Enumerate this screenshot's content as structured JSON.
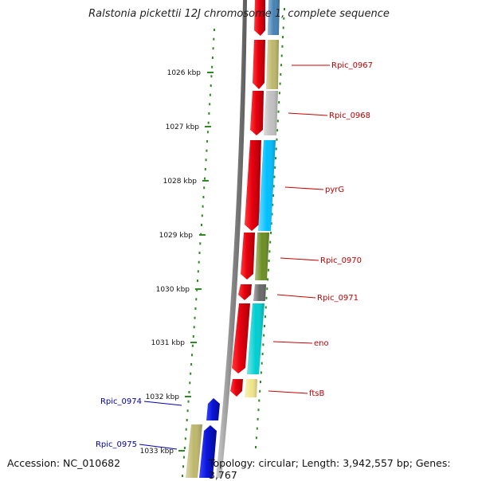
{
  "title": "Ralstonia pickettii 12J chromosome 1, complete sequence",
  "footer": {
    "accession": "Accession: NC_010682",
    "topology": "Topology: circular; Length: 3,942,557 bp; Genes: 3,767"
  },
  "colors": {
    "forward_arrow": "#e8000f",
    "reverse_arrow": "#0a14d8",
    "label_forward": "#c00000",
    "label_reverse": "#0000b0",
    "backbone": "#8a8a8a",
    "kbp_tick": "#2e8b22"
  },
  "kbp_ticks": [
    "1026 kbp",
    "1027 kbp",
    "1028 kbp",
    "1029 kbp",
    "1030 kbp",
    "1031 kbp",
    "1032 kbp",
    "1033 kbp"
  ],
  "genes": [
    {
      "name": "",
      "strand": "+",
      "color": "#4682b4"
    },
    {
      "name": "Rpic_0967",
      "strand": "+",
      "color": "#bdb76b"
    },
    {
      "name": "Rpic_0968",
      "strand": "+",
      "color": "#c0c0c0"
    },
    {
      "name": "pyrG",
      "strand": "+",
      "color": "#00bfff"
    },
    {
      "name": "Rpic_0970",
      "strand": "+",
      "color": "#6b8e23"
    },
    {
      "name": "Rpic_0971",
      "strand": "+",
      "color": "#696969"
    },
    {
      "name": "eno",
      "strand": "+",
      "color": "#00ced1"
    },
    {
      "name": "ftsB",
      "strand": "+",
      "color": "#f0e68c"
    },
    {
      "name": "Rpic_0974",
      "strand": "-",
      "color": ""
    },
    {
      "name": "Rpic_0975",
      "strand": "-",
      "color": "#bdb76b"
    }
  ]
}
